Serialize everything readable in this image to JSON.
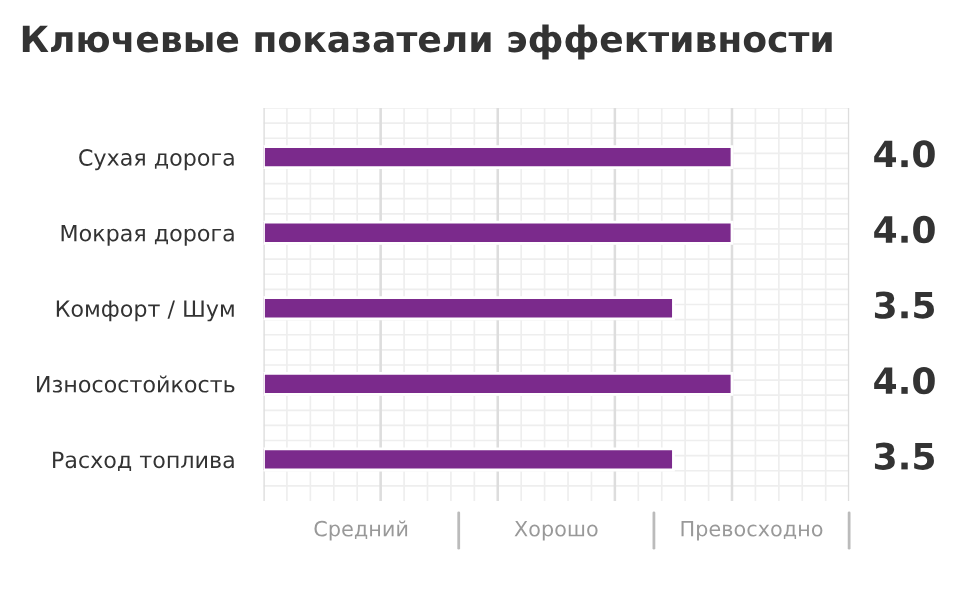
{
  "chart_data": {
    "type": "bar",
    "orientation": "horizontal",
    "title": "Ключевые показатели эффективности",
    "categories": [
      "Сухая дорога",
      "Мокрая дорога",
      "Комфорт / Шум",
      "Износостойкость",
      "Расход топлива"
    ],
    "values": [
      4.0,
      4.0,
      3.5,
      4.0,
      3.5
    ],
    "color": "#7b2a8c",
    "value_labels": [
      "4.0",
      "4.0",
      "3.5",
      "4.0",
      "3.5"
    ],
    "xlim": [
      0,
      5
    ],
    "annotations": [
      "Средний",
      "Хорошо",
      "Превосходно"
    ],
    "grid": true,
    "legend": false
  }
}
